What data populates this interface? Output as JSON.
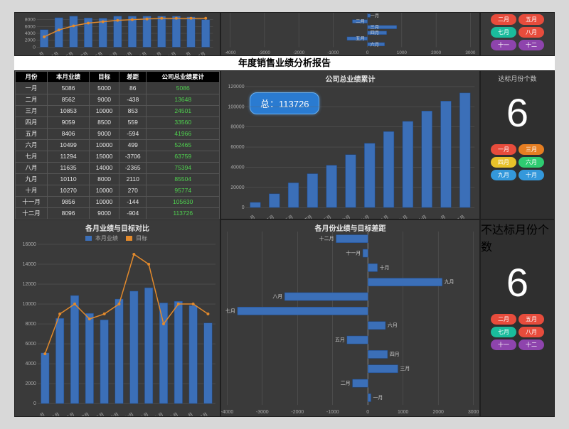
{
  "title": "年度销售业绩分析报告",
  "months": [
    "一月",
    "二月",
    "三月",
    "四月",
    "五月",
    "六月",
    "七月",
    "八月",
    "九月",
    "十月",
    "十一月",
    "十二月"
  ],
  "colors": {
    "bg": "#3a3a3a",
    "grid": "#666666",
    "bar": "#3b6fb8",
    "bar_stroke": "#1f4a8a",
    "line": "#e38a2c",
    "text": "#e5e5e5",
    "cum": "#4fd04f",
    "badge": "#2a7bd1"
  },
  "chip_colors": {
    "一月": "#e74c3c",
    "二月": "#e74c3c",
    "三月": "#e67e22",
    "四月": "#e8c22a",
    "五月": "#e74c3c",
    "六月": "#2ecc71",
    "七月": "#1abc9c",
    "八月": "#e74c3c",
    "九月": "#3498db",
    "十月": "#3498db",
    "十一月": "#8e44ad",
    "十二月": "#8e44ad"
  },
  "top_left_chart": {
    "type": "bar+line",
    "yticks": [
      0,
      2000,
      4000,
      6000,
      8000
    ],
    "h": 54,
    "bars": [
      5086,
      8562,
      9000,
      8500,
      8406,
      9000,
      9000,
      9000,
      9000,
      9000,
      8800,
      8000
    ],
    "line": [
      3000,
      5000,
      6200,
      7000,
      7400,
      7800,
      8000,
      8200,
      8400,
      8400,
      8400,
      8400
    ],
    "ymax": 9200
  },
  "top_mid_chart": {
    "type": "hbar_diff",
    "xticks": [
      -4000,
      -3000,
      -2000,
      -1000,
      0,
      1000,
      2000,
      3000
    ],
    "rows_visible": [
      "一月",
      "二月",
      "三月",
      "四月",
      "五月",
      "六月"
    ],
    "note_left": "一月"
  },
  "top_right_chips": [
    "二月",
    "五月",
    "七月",
    "八月",
    "十一",
    "十二"
  ],
  "table": {
    "headers": [
      "月份",
      "本月业绩",
      "目标",
      "差距",
      "公司总业绩累计"
    ],
    "rows": [
      [
        "一月",
        5086,
        5000,
        86,
        5086
      ],
      [
        "二月",
        8562,
        9000,
        -438,
        13648
      ],
      [
        "三月",
        10853,
        10000,
        853,
        24501
      ],
      [
        "四月",
        9059,
        8500,
        559,
        33560
      ],
      [
        "五月",
        8406,
        9000,
        -594,
        41966
      ],
      [
        "六月",
        10499,
        10000,
        499,
        52465
      ],
      [
        "七月",
        11294,
        15000,
        -3706,
        63759
      ],
      [
        "八月",
        11635,
        14000,
        -2365,
        75394
      ],
      [
        "九月",
        10110,
        8000,
        2110,
        85504
      ],
      [
        "十月",
        10270,
        10000,
        270,
        95774
      ],
      [
        "十一月",
        9856,
        10000,
        -144,
        105630
      ],
      [
        "十二月",
        8096,
        9000,
        -904,
        113726
      ]
    ]
  },
  "cumulative_chart": {
    "title": "公司总业绩累计",
    "type": "bar",
    "ymax": 120000,
    "ystep": 20000,
    "values": [
      5086,
      13648,
      24501,
      33560,
      41966,
      52465,
      63759,
      75394,
      85504,
      95774,
      105630,
      113726
    ],
    "total_label": "总：",
    "total_value": "113726"
  },
  "target_count": {
    "label": "达标月份个数",
    "value": "6",
    "chips": [
      "一月",
      "三月",
      "四月",
      "六月",
      "九月",
      "十月"
    ]
  },
  "miss_count": {
    "label": "不达标月份个数",
    "value": "6",
    "chips": [
      "二月",
      "五月",
      "七月",
      "八月",
      "十一",
      "十二"
    ]
  },
  "compare_chart": {
    "title": "各月业绩与目标对比",
    "legend": {
      "bar": "本月业绩",
      "line": "目标"
    },
    "type": "bar+line",
    "ymax": 16000,
    "ystep": 2000,
    "bars": [
      5086,
      8562,
      10853,
      9059,
      8406,
      10499,
      11294,
      11635,
      10110,
      10270,
      9856,
      8096
    ],
    "line": [
      5000,
      9000,
      10000,
      8500,
      9000,
      10000,
      15000,
      14000,
      8000,
      10000,
      10000,
      9000
    ]
  },
  "diff_chart": {
    "title": "各月份业绩与目标差距",
    "type": "diverging_hbar",
    "xmin": -4000,
    "xmax": 3000,
    "xstep": 1000,
    "rows": [
      {
        "m": "十二月",
        "v": -904
      },
      {
        "m": "十一月",
        "v": -144
      },
      {
        "m": "十月",
        "v": 270
      },
      {
        "m": "九月",
        "v": 2110
      },
      {
        "m": "八月",
        "v": -2365
      },
      {
        "m": "七月",
        "v": -3706
      },
      {
        "m": "六月",
        "v": 499
      },
      {
        "m": "五月",
        "v": -594
      },
      {
        "m": "四月",
        "v": 559
      },
      {
        "m": "三月",
        "v": 853
      },
      {
        "m": "二月",
        "v": -438
      },
      {
        "m": "一月",
        "v": 86
      }
    ]
  }
}
